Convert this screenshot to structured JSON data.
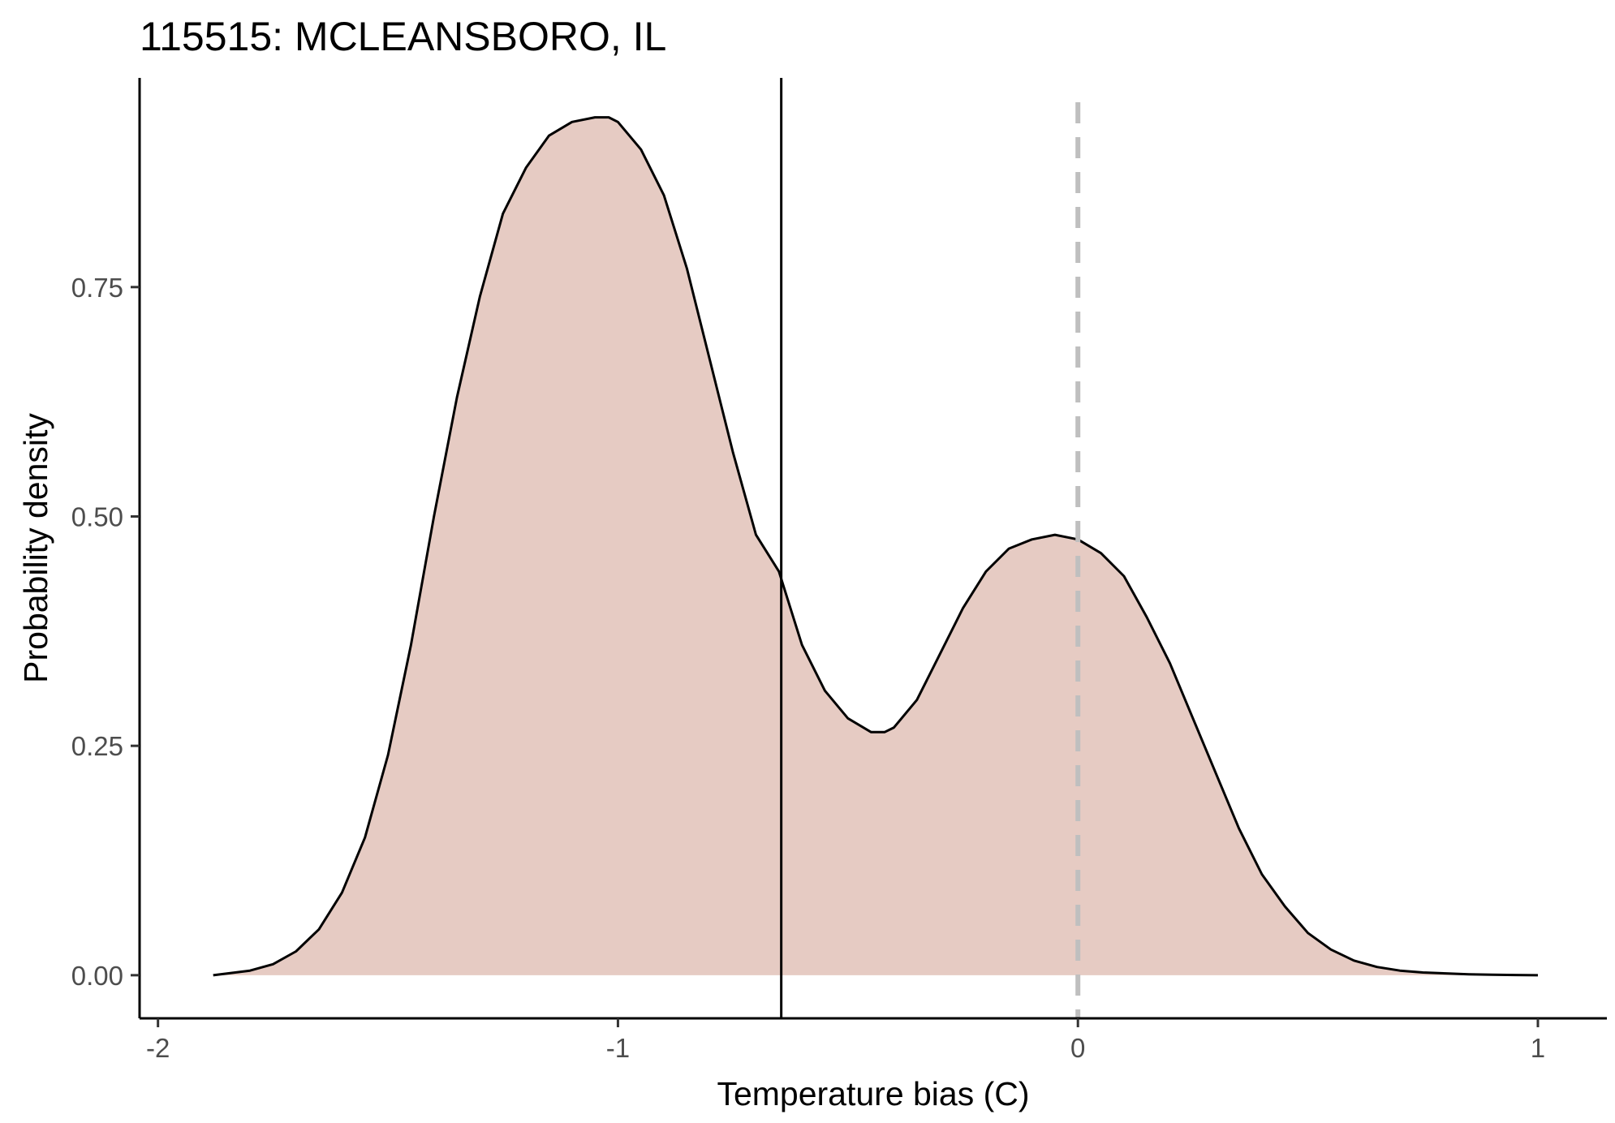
{
  "chart_data": {
    "type": "area",
    "title": "115515: MCLEANSBORO, IL",
    "xlabel": "Temperature bias (C)",
    "ylabel": "Probability density",
    "xlim": [
      -2.04,
      1.15
    ],
    "ylim": [
      -0.047,
      0.978
    ],
    "x_ticks": [
      -2,
      -1,
      0,
      1
    ],
    "x_tick_labels": [
      "-2",
      "-1",
      "0",
      "1"
    ],
    "y_ticks": [
      0,
      0.25,
      0.5,
      0.75
    ],
    "y_tick_labels": [
      "0.00",
      "0.25",
      "0.50",
      "0.75"
    ],
    "grid": false,
    "fill_color": "#e6cbc3",
    "line_color": "#000000",
    "reference_lines": [
      {
        "axis": "x",
        "value": -0.645,
        "style": "solid",
        "color": "#000000"
      },
      {
        "axis": "x",
        "value": 0.0,
        "style": "dashed",
        "color": "#bfbfbf"
      }
    ],
    "series": [
      {
        "x": [
          -1.88,
          -1.8,
          -1.75,
          -1.7,
          -1.65,
          -1.6,
          -1.55,
          -1.5,
          -1.45,
          -1.4,
          -1.35,
          -1.3,
          -1.25,
          -1.2,
          -1.15,
          -1.1,
          -1.05,
          -1.02,
          -1.0,
          -0.95,
          -0.9,
          -0.85,
          -0.8,
          -0.75,
          -0.7,
          -0.65,
          -0.6,
          -0.55,
          -0.5,
          -0.45,
          -0.42,
          -0.4,
          -0.35,
          -0.3,
          -0.25,
          -0.2,
          -0.15,
          -0.1,
          -0.05,
          0.0,
          0.05,
          0.1,
          0.15,
          0.2,
          0.25,
          0.3,
          0.35,
          0.4,
          0.45,
          0.5,
          0.55,
          0.6,
          0.65,
          0.7,
          0.75,
          0.8,
          0.85,
          0.9,
          0.95,
          1.0
        ],
        "y": [
          0.0,
          0.005,
          0.012,
          0.026,
          0.05,
          0.09,
          0.15,
          0.24,
          0.36,
          0.5,
          0.63,
          0.74,
          0.83,
          0.88,
          0.915,
          0.93,
          0.935,
          0.935,
          0.93,
          0.9,
          0.85,
          0.77,
          0.67,
          0.57,
          0.48,
          0.44,
          0.36,
          0.31,
          0.28,
          0.265,
          0.265,
          0.27,
          0.3,
          0.35,
          0.4,
          0.44,
          0.465,
          0.475,
          0.48,
          0.475,
          0.46,
          0.435,
          0.39,
          0.34,
          0.28,
          0.22,
          0.16,
          0.11,
          0.075,
          0.046,
          0.028,
          0.016,
          0.009,
          0.005,
          0.003,
          0.002,
          0.001,
          0.0005,
          0.0002,
          0.0
        ]
      }
    ]
  }
}
